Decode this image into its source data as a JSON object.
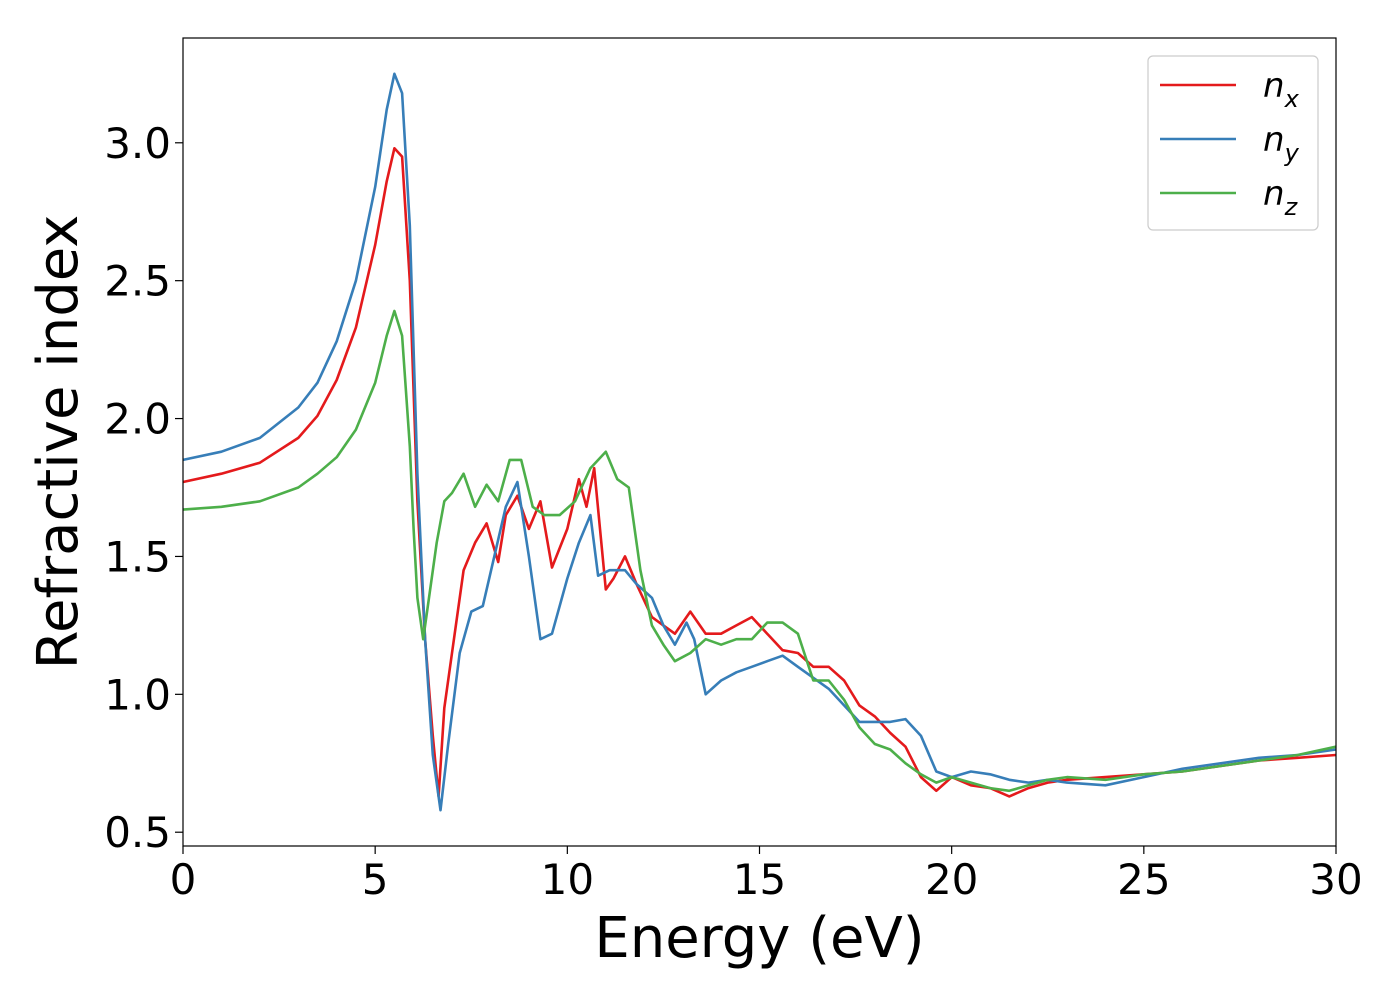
{
  "chart_data": {
    "type": "line",
    "xlabel": "Energy (eV)",
    "ylabel": "Refractive index",
    "xlim": [
      0,
      30
    ],
    "ylim": [
      0.45,
      3.38
    ],
    "xticks": [
      0,
      5,
      10,
      15,
      20,
      25,
      30
    ],
    "yticks": [
      0.5,
      1.0,
      1.5,
      2.0,
      2.5,
      3.0
    ],
    "xtick_labels": [
      "0",
      "5",
      "10",
      "15",
      "20",
      "25",
      "30"
    ],
    "ytick_labels": [
      "0.5",
      "1.0",
      "1.5",
      "2.0",
      "2.5",
      "3.0"
    ],
    "grid": false,
    "legend_position": "top-right",
    "series": [
      {
        "name": "n",
        "subscript": "x",
        "color": "#e41a1c",
        "x": [
          0,
          1,
          2,
          3,
          3.5,
          4,
          4.5,
          5,
          5.3,
          5.5,
          5.7,
          5.9,
          6.1,
          6.3,
          6.5,
          6.65,
          6.8,
          7.0,
          7.3,
          7.6,
          7.9,
          8.2,
          8.4,
          8.7,
          9.0,
          9.3,
          9.6,
          10.0,
          10.3,
          10.5,
          10.7,
          11.0,
          11.2,
          11.5,
          11.8,
          12.2,
          12.5,
          12.8,
          13.2,
          13.6,
          14.0,
          14.4,
          14.8,
          15.2,
          15.6,
          16.0,
          16.4,
          16.8,
          17.2,
          17.6,
          18.0,
          18.4,
          18.8,
          19.2,
          19.6,
          20.0,
          20.5,
          21.0,
          21.5,
          22.0,
          22.5,
          23.0,
          24.0,
          25.0,
          26.0,
          27.0,
          28.0,
          29.0,
          30.0
        ],
        "values": [
          1.77,
          1.8,
          1.84,
          1.93,
          2.01,
          2.14,
          2.33,
          2.63,
          2.86,
          2.98,
          2.95,
          2.5,
          1.7,
          1.2,
          0.85,
          0.63,
          0.95,
          1.15,
          1.45,
          1.55,
          1.62,
          1.48,
          1.65,
          1.72,
          1.6,
          1.7,
          1.46,
          1.6,
          1.78,
          1.68,
          1.82,
          1.38,
          1.42,
          1.5,
          1.4,
          1.28,
          1.25,
          1.22,
          1.3,
          1.22,
          1.22,
          1.25,
          1.28,
          1.22,
          1.16,
          1.15,
          1.1,
          1.1,
          1.05,
          0.96,
          0.92,
          0.86,
          0.81,
          0.7,
          0.65,
          0.7,
          0.67,
          0.66,
          0.63,
          0.66,
          0.68,
          0.69,
          0.7,
          0.71,
          0.72,
          0.74,
          0.76,
          0.77,
          0.78
        ]
      },
      {
        "name": "n",
        "subscript": "y",
        "color": "#377eb8",
        "x": [
          0,
          1,
          2,
          3,
          3.5,
          4,
          4.5,
          5,
          5.3,
          5.5,
          5.7,
          5.9,
          6.1,
          6.3,
          6.5,
          6.7,
          6.9,
          7.2,
          7.5,
          7.8,
          8.1,
          8.4,
          8.7,
          9.0,
          9.3,
          9.6,
          10.0,
          10.3,
          10.6,
          10.8,
          11.1,
          11.5,
          11.8,
          12.2,
          12.5,
          12.8,
          13.1,
          13.3,
          13.6,
          14.0,
          14.4,
          14.8,
          15.2,
          15.6,
          16.0,
          16.4,
          16.8,
          17.2,
          17.6,
          18.0,
          18.4,
          18.8,
          19.2,
          19.6,
          20.0,
          20.5,
          21.0,
          21.5,
          22.0,
          22.5,
          23.0,
          24.0,
          25.0,
          26.0,
          27.0,
          28.0,
          29.0,
          30.0
        ],
        "values": [
          1.85,
          1.88,
          1.93,
          2.04,
          2.13,
          2.28,
          2.5,
          2.84,
          3.12,
          3.25,
          3.18,
          2.7,
          1.8,
          1.2,
          0.78,
          0.58,
          0.82,
          1.15,
          1.3,
          1.32,
          1.5,
          1.68,
          1.77,
          1.5,
          1.2,
          1.22,
          1.42,
          1.55,
          1.65,
          1.43,
          1.45,
          1.45,
          1.4,
          1.35,
          1.25,
          1.18,
          1.26,
          1.2,
          1.0,
          1.05,
          1.08,
          1.1,
          1.12,
          1.14,
          1.1,
          1.06,
          1.02,
          0.96,
          0.9,
          0.9,
          0.9,
          0.91,
          0.85,
          0.72,
          0.7,
          0.72,
          0.71,
          0.69,
          0.68,
          0.69,
          0.68,
          0.67,
          0.7,
          0.73,
          0.75,
          0.77,
          0.78,
          0.8
        ]
      },
      {
        "name": "n",
        "subscript": "z",
        "color": "#4daf4a",
        "x": [
          0,
          1,
          2,
          3,
          3.5,
          4,
          4.5,
          5,
          5.3,
          5.5,
          5.7,
          5.9,
          6.0,
          6.1,
          6.25,
          6.4,
          6.6,
          6.8,
          7.0,
          7.3,
          7.6,
          7.9,
          8.2,
          8.5,
          8.8,
          9.1,
          9.4,
          9.8,
          10.2,
          10.6,
          11.0,
          11.3,
          11.6,
          11.9,
          12.2,
          12.5,
          12.8,
          13.2,
          13.6,
          14.0,
          14.4,
          14.8,
          15.2,
          15.6,
          16.0,
          16.4,
          16.8,
          17.2,
          17.6,
          18.0,
          18.4,
          18.8,
          19.2,
          19.6,
          20.0,
          20.5,
          21.0,
          21.5,
          22.0,
          22.5,
          23.0,
          24.0,
          25.0,
          26.0,
          27.0,
          28.0,
          29.0,
          30.0
        ],
        "values": [
          1.67,
          1.68,
          1.7,
          1.75,
          1.8,
          1.86,
          1.96,
          2.13,
          2.3,
          2.39,
          2.3,
          1.9,
          1.6,
          1.35,
          1.2,
          1.35,
          1.55,
          1.7,
          1.73,
          1.8,
          1.68,
          1.76,
          1.7,
          1.85,
          1.85,
          1.68,
          1.65,
          1.65,
          1.7,
          1.82,
          1.88,
          1.78,
          1.75,
          1.45,
          1.25,
          1.18,
          1.12,
          1.15,
          1.2,
          1.18,
          1.2,
          1.2,
          1.26,
          1.26,
          1.22,
          1.05,
          1.05,
          0.98,
          0.88,
          0.82,
          0.8,
          0.75,
          0.71,
          0.68,
          0.7,
          0.68,
          0.66,
          0.65,
          0.67,
          0.69,
          0.7,
          0.69,
          0.71,
          0.72,
          0.74,
          0.76,
          0.78,
          0.81
        ]
      }
    ]
  }
}
